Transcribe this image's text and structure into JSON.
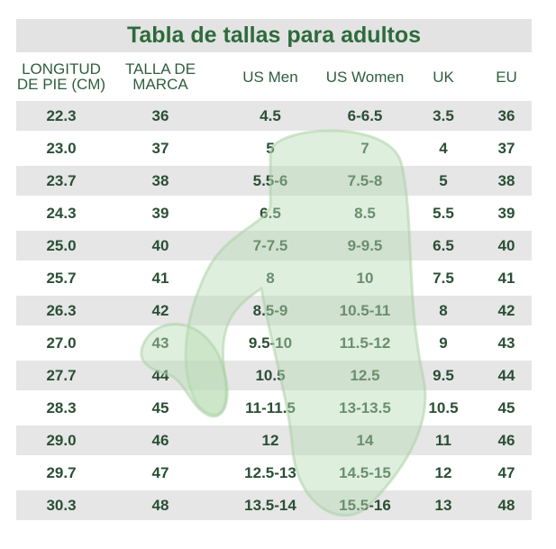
{
  "header": {
    "title": "Tabla de tallas para adultos"
  },
  "table": {
    "columns": [
      "LONGITUD DE PIE (CM)",
      "TALLA DE MARCA",
      "US Men",
      "US Women",
      "UK",
      "EU"
    ],
    "rows": [
      [
        "22.3",
        "36",
        "4.5",
        "6-6.5",
        "3.5",
        "36"
      ],
      [
        "23.0",
        "37",
        "5",
        "7",
        "4",
        "37"
      ],
      [
        "23.7",
        "38",
        "5.5-6",
        "7.5-8",
        "5",
        "38"
      ],
      [
        "24.3",
        "39",
        "6.5",
        "8.5",
        "5.5",
        "39"
      ],
      [
        "25.0",
        "40",
        "7-7.5",
        "9-9.5",
        "6.5",
        "40"
      ],
      [
        "25.7",
        "41",
        "8",
        "10",
        "7.5",
        "41"
      ],
      [
        "26.3",
        "42",
        "8.5-9",
        "10.5-11",
        "8",
        "42"
      ],
      [
        "27.0",
        "43",
        "9.5-10",
        "11.5-12",
        "9",
        "43"
      ],
      [
        "27.7",
        "44",
        "10.5",
        "12.5",
        "9.5",
        "44"
      ],
      [
        "28.3",
        "45",
        "11-11.5",
        "13-13.5",
        "10.5",
        "45"
      ],
      [
        "29.0",
        "46",
        "12",
        "14",
        "11",
        "46"
      ],
      [
        "29.7",
        "47",
        "12.5-13",
        "14.5-15",
        "12",
        "47"
      ],
      [
        "30.3",
        "48",
        "13.5-14",
        "15.5-16",
        "13",
        "48"
      ]
    ]
  }
}
